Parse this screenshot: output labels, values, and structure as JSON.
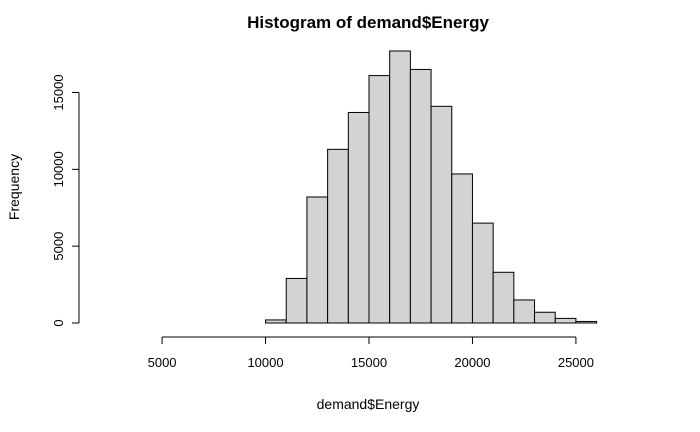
{
  "chart_data": {
    "type": "bar",
    "title": "Histogram of demand$Energy",
    "xlabel": "demand$Energy",
    "ylabel": "Frequency",
    "xlim": [
      2000,
      28000
    ],
    "ylim": [
      0,
      17700
    ],
    "x_ticks": [
      5000,
      10000,
      15000,
      20000,
      25000
    ],
    "y_ticks": [
      0,
      5000,
      10000,
      15000
    ],
    "bin_width": 1000,
    "bins": [
      {
        "start": 3000,
        "end": 4000,
        "count": 0
      },
      {
        "start": 4000,
        "end": 5000,
        "count": 0
      },
      {
        "start": 5000,
        "end": 6000,
        "count": 0
      },
      {
        "start": 6000,
        "end": 7000,
        "count": 0
      },
      {
        "start": 7000,
        "end": 8000,
        "count": 0
      },
      {
        "start": 8000,
        "end": 9000,
        "count": 0
      },
      {
        "start": 9000,
        "end": 10000,
        "count": 0
      },
      {
        "start": 10000,
        "end": 11000,
        "count": 200
      },
      {
        "start": 11000,
        "end": 12000,
        "count": 2900
      },
      {
        "start": 12000,
        "end": 13000,
        "count": 8200
      },
      {
        "start": 13000,
        "end": 14000,
        "count": 11300
      },
      {
        "start": 14000,
        "end": 15000,
        "count": 13700
      },
      {
        "start": 15000,
        "end": 16000,
        "count": 16100
      },
      {
        "start": 16000,
        "end": 17000,
        "count": 17700
      },
      {
        "start": 17000,
        "end": 18000,
        "count": 16500
      },
      {
        "start": 18000,
        "end": 19000,
        "count": 14100
      },
      {
        "start": 19000,
        "end": 20000,
        "count": 9700
      },
      {
        "start": 20000,
        "end": 21000,
        "count": 6500
      },
      {
        "start": 21000,
        "end": 22000,
        "count": 3300
      },
      {
        "start": 22000,
        "end": 23000,
        "count": 1500
      },
      {
        "start": 23000,
        "end": 24000,
        "count": 700
      },
      {
        "start": 24000,
        "end": 25000,
        "count": 300
      },
      {
        "start": 25000,
        "end": 26000,
        "count": 100
      }
    ],
    "colors": {
      "bar_fill": "#d3d3d3",
      "bar_stroke": "#000000"
    }
  }
}
